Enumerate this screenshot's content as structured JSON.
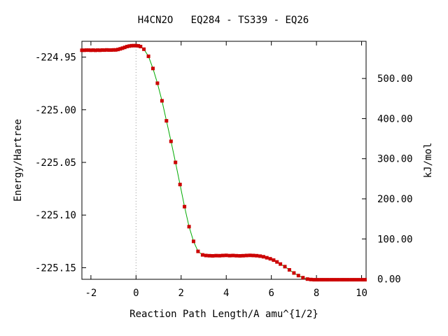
{
  "chart_data": {
    "type": "line",
    "title": "H4CN2O   EQ284 - TS339 - EQ26",
    "xlabel": "Reaction Path Length/A amu^{1/2}",
    "ylabel": "Energy/Hartree",
    "y2label": "kJ/mol",
    "xlim": [
      -2.4,
      10.2
    ],
    "ylim": [
      -225.161,
      -224.935
    ],
    "y2lim": [
      -0.66,
      592.7
    ],
    "xticks": [
      -2,
      0,
      2,
      4,
      6,
      8,
      10
    ],
    "xtick_labels": [
      "-2",
      "0",
      "2",
      "4",
      "6",
      "8",
      "10"
    ],
    "yticks": [
      -224.95,
      -225.0,
      -225.05,
      -225.1,
      -225.15
    ],
    "ytick_labels": [
      "-224.95",
      "-225.00",
      "-225.05",
      "-225.10",
      "-225.15"
    ],
    "y2ticks": [
      0,
      100,
      200,
      300,
      400,
      500
    ],
    "y2tick_labels": [
      "0.00",
      "100.00",
      "200.00",
      "300.00",
      "400.00",
      "500.00"
    ],
    "ts_marker_x": 0,
    "grid": false,
    "line_color": "#00aa00",
    "marker_color": "#cc0000",
    "series": [
      {
        "x": [
          -2.4,
          -2.3,
          -2.2,
          -2.1,
          -2.0,
          -1.9,
          -1.8,
          -1.7,
          -1.6,
          -1.5,
          -1.4,
          -1.3,
          -1.2,
          -1.1,
          -1.0,
          -0.9,
          -0.8,
          -0.7,
          -0.6,
          -0.5,
          -0.4,
          -0.3,
          -0.2,
          -0.1,
          0.0,
          0.1,
          0.2,
          0.35,
          0.55,
          0.75,
          0.95,
          1.15,
          1.35,
          1.55,
          1.75,
          1.95,
          2.15,
          2.35,
          2.55,
          2.75,
          2.95,
          3.1,
          3.25,
          3.4,
          3.55,
          3.7,
          3.85,
          4.0,
          4.15,
          4.3,
          4.45,
          4.6,
          4.75,
          4.9,
          5.05,
          5.2,
          5.35,
          5.5,
          5.65,
          5.8,
          5.95,
          6.1,
          6.25,
          6.4,
          6.6,
          6.8,
          7.0,
          7.2,
          7.4,
          7.6,
          7.75,
          7.9,
          8.05,
          8.2,
          8.35,
          8.5,
          8.65,
          8.8,
          8.95,
          9.1,
          9.25,
          9.4,
          9.55,
          9.7,
          9.85,
          10.0,
          10.15
        ],
        "y": [
          -224.9435,
          -224.9435,
          -224.9434,
          -224.9434,
          -224.9435,
          -224.9434,
          -224.9436,
          -224.9434,
          -224.9435,
          -224.9433,
          -224.9434,
          -224.9432,
          -224.9433,
          -224.9433,
          -224.9432,
          -224.9432,
          -224.9428,
          -224.9422,
          -224.9415,
          -224.9408,
          -224.94,
          -224.9395,
          -224.9392,
          -224.9391,
          -224.9391,
          -224.9393,
          -224.94,
          -224.9425,
          -224.9492,
          -224.9608,
          -224.9748,
          -224.9915,
          -225.0105,
          -225.03,
          -225.05,
          -225.071,
          -225.092,
          -225.111,
          -225.125,
          -225.1345,
          -225.1378,
          -225.1384,
          -225.1386,
          -225.1387,
          -225.1385,
          -225.1386,
          -225.1384,
          -225.1383,
          -225.1385,
          -225.1384,
          -225.1386,
          -225.1387,
          -225.1386,
          -225.1384,
          -225.1383,
          -225.1384,
          -225.1386,
          -225.139,
          -225.1396,
          -225.1405,
          -225.1415,
          -225.1428,
          -225.1445,
          -225.1465,
          -225.149,
          -225.152,
          -225.155,
          -225.1575,
          -225.1595,
          -225.1608,
          -225.1612,
          -225.1614,
          -225.1614,
          -225.1614,
          -225.1614,
          -225.1614,
          -225.1614,
          -225.1614,
          -225.1614,
          -225.1614,
          -225.1614,
          -225.1614,
          -225.1614,
          -225.1614,
          -225.1614,
          -225.1614,
          -225.1614
        ]
      }
    ]
  }
}
